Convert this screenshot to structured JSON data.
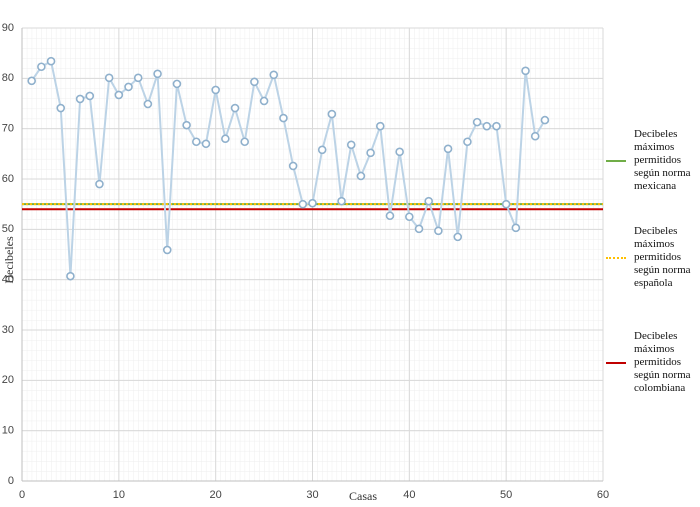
{
  "chart_data": {
    "type": "line",
    "x_label": "Casas",
    "y_label": "Decibeles",
    "x": [
      1,
      2,
      3,
      4,
      5,
      6,
      7,
      8,
      9,
      10,
      11,
      12,
      13,
      14,
      15,
      16,
      17,
      18,
      19,
      20,
      21,
      22,
      23,
      24,
      25,
      26,
      27,
      28,
      29,
      30,
      31,
      32,
      33,
      34,
      35,
      36,
      37,
      38,
      39,
      40,
      41,
      42,
      43,
      44,
      45,
      46,
      47,
      48,
      49,
      50,
      51,
      52,
      53,
      54
    ],
    "values": [
      79.5,
      82.3,
      83.4,
      74.1,
      40.7,
      75.9,
      76.5,
      59,
      80.1,
      76.7,
      78.3,
      80.1,
      74.9,
      80.9,
      45.9,
      78.9,
      70.7,
      67.4,
      67,
      77.7,
      68,
      74.1,
      67.4,
      79.3,
      75.5,
      80.7,
      72.1,
      62.6,
      55,
      55.2,
      65.8,
      72.9,
      55.6,
      66.8,
      60.6,
      65.2,
      70.5,
      52.7,
      65.4,
      52.5,
      50.1,
      55.6,
      49.7,
      66,
      48.5,
      67.4,
      71.3,
      70.5,
      70.5,
      55,
      50.3,
      81.5,
      68.5,
      71.7
    ],
    "color": "#bcd3e6",
    "reference_lines": [
      {
        "name": "Decibeles máximos permitidos según norma mexicana",
        "value": 55,
        "color": "#70ad47",
        "style": "solid"
      },
      {
        "name": "Decibeles máximos permitidos según norma española",
        "value": 55,
        "color": "#ffc000",
        "style": "dotted"
      },
      {
        "name": "Decibeles máximos permitidos según norma colombiana",
        "value": 54,
        "color": "#c00000",
        "style": "solid"
      }
    ],
    "xlim": [
      0,
      60
    ],
    "xticks": [
      0,
      10,
      20,
      30,
      40,
      50,
      60
    ],
    "ylim": [
      0,
      90
    ],
    "yticks": [
      0,
      10,
      20,
      30,
      40,
      50,
      60,
      70,
      80,
      90
    ],
    "grid": true
  }
}
